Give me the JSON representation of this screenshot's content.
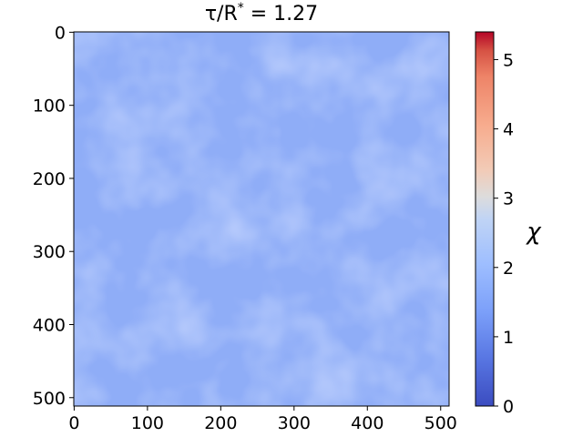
{
  "chart_data": {
    "type": "heatmap",
    "title": "τ/R* = 1.27",
    "title_parts": {
      "lhs": "τ/R",
      "sup": "*",
      "rhs": " = 1.27"
    },
    "xlabel": "",
    "ylabel": "",
    "x_range": [
      0,
      511
    ],
    "y_range": [
      0,
      511
    ],
    "y_axis_inverted": true,
    "x_ticks": [
      "0",
      "100",
      "200",
      "300",
      "400",
      "500"
    ],
    "y_ticks": [
      "0",
      "100",
      "200",
      "300",
      "400",
      "500"
    ],
    "field_description": "nearly uniform field, values ~1.2–1.4",
    "typical_value": 1.27,
    "colorbar": {
      "label": "χ",
      "colormap": "coolwarm",
      "range": [
        0,
        5.4
      ],
      "ticks": [
        "0",
        "1",
        "2",
        "3",
        "4",
        "5"
      ]
    },
    "colors": {
      "field_base": "#8fadf7",
      "cmap_low": "#3b4cc0",
      "cmap_mid": "#dddddd",
      "cmap_high": "#b40426"
    }
  }
}
